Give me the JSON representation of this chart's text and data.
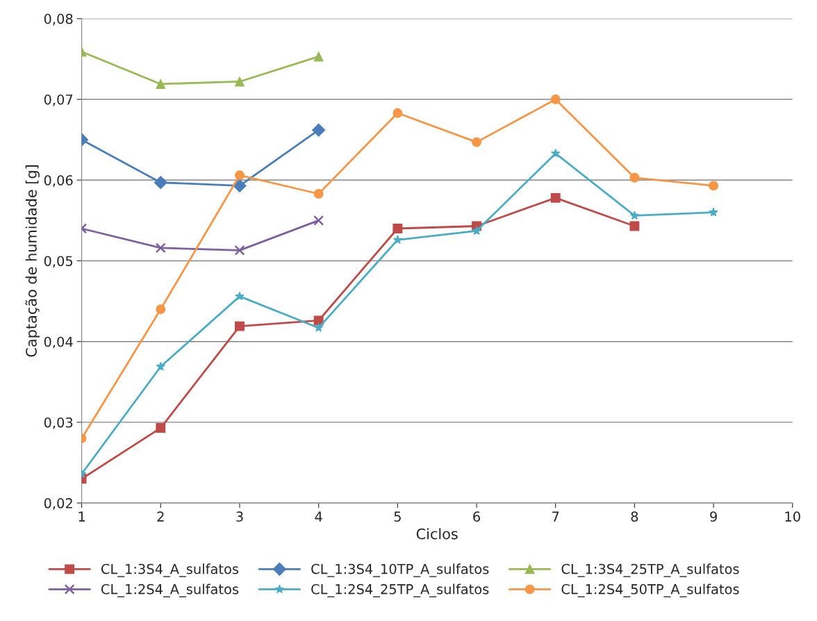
{
  "chart_data": {
    "type": "line",
    "xlabel": "Ciclos",
    "ylabel": "Captação de humidade [g]",
    "xlim": [
      1,
      10
    ],
    "xticks": [
      1,
      2,
      3,
      4,
      5,
      6,
      7,
      8,
      9,
      10
    ],
    "ylim": [
      0.02,
      0.08
    ],
    "yticks": [
      {
        "value": 0.02,
        "label": "0,02"
      },
      {
        "value": 0.03,
        "label": "0,03"
      },
      {
        "value": 0.04,
        "label": "0,04"
      },
      {
        "value": 0.05,
        "label": "0,05"
      },
      {
        "value": 0.06,
        "label": "0,06"
      },
      {
        "value": 0.07,
        "label": "0,07"
      },
      {
        "value": 0.08,
        "label": "0,08"
      }
    ],
    "grid": "y",
    "legend": "bottom",
    "line_style": "solid",
    "series": [
      {
        "name": "CL_1:3S4_A_sulfatos",
        "color": "#be4b48",
        "marker": "square",
        "x": [
          1,
          2,
          3,
          4,
          5,
          6,
          7,
          8
        ],
        "values": [
          0.023,
          0.0293,
          0.0419,
          0.0426,
          0.054,
          0.0543,
          0.0578,
          0.0543
        ]
      },
      {
        "name": "CL_1:3S4_10TP_A_sulfatos",
        "color": "#4a7ebb",
        "marker": "diamond",
        "x": [
          1,
          2,
          3,
          4
        ],
        "values": [
          0.065,
          0.0597,
          0.0593,
          0.0662
        ]
      },
      {
        "name": "CL_1:3S4_25TP_A_sulfatos",
        "color": "#98b954",
        "marker": "triangle",
        "x": [
          1,
          2,
          3,
          4
        ],
        "values": [
          0.0759,
          0.0719,
          0.0722,
          0.0753
        ]
      },
      {
        "name": "CL_1:2S4_A_sulfatos",
        "color": "#7d60a0",
        "marker": "cross",
        "x": [
          1,
          2,
          3,
          4
        ],
        "values": [
          0.054,
          0.0516,
          0.0513,
          0.055
        ]
      },
      {
        "name": "CL_1:2S4_25TP_A_sulfatos",
        "color": "#4bacc6",
        "marker": "star",
        "x": [
          1,
          2,
          3,
          4,
          5,
          6,
          7,
          8,
          9
        ],
        "values": [
          0.0236,
          0.0369,
          0.0456,
          0.0417,
          0.0526,
          0.0537,
          0.0633,
          0.0556,
          0.056
        ]
      },
      {
        "name": "CL_1:2S4_50TP_A_sulfatos",
        "color": "#f79646",
        "marker": "circle",
        "x": [
          1,
          2,
          3,
          4,
          5,
          6,
          7,
          8,
          9
        ],
        "values": [
          0.028,
          0.044,
          0.0606,
          0.0583,
          0.0683,
          0.0647,
          0.07,
          0.0603,
          0.0593
        ]
      }
    ]
  }
}
